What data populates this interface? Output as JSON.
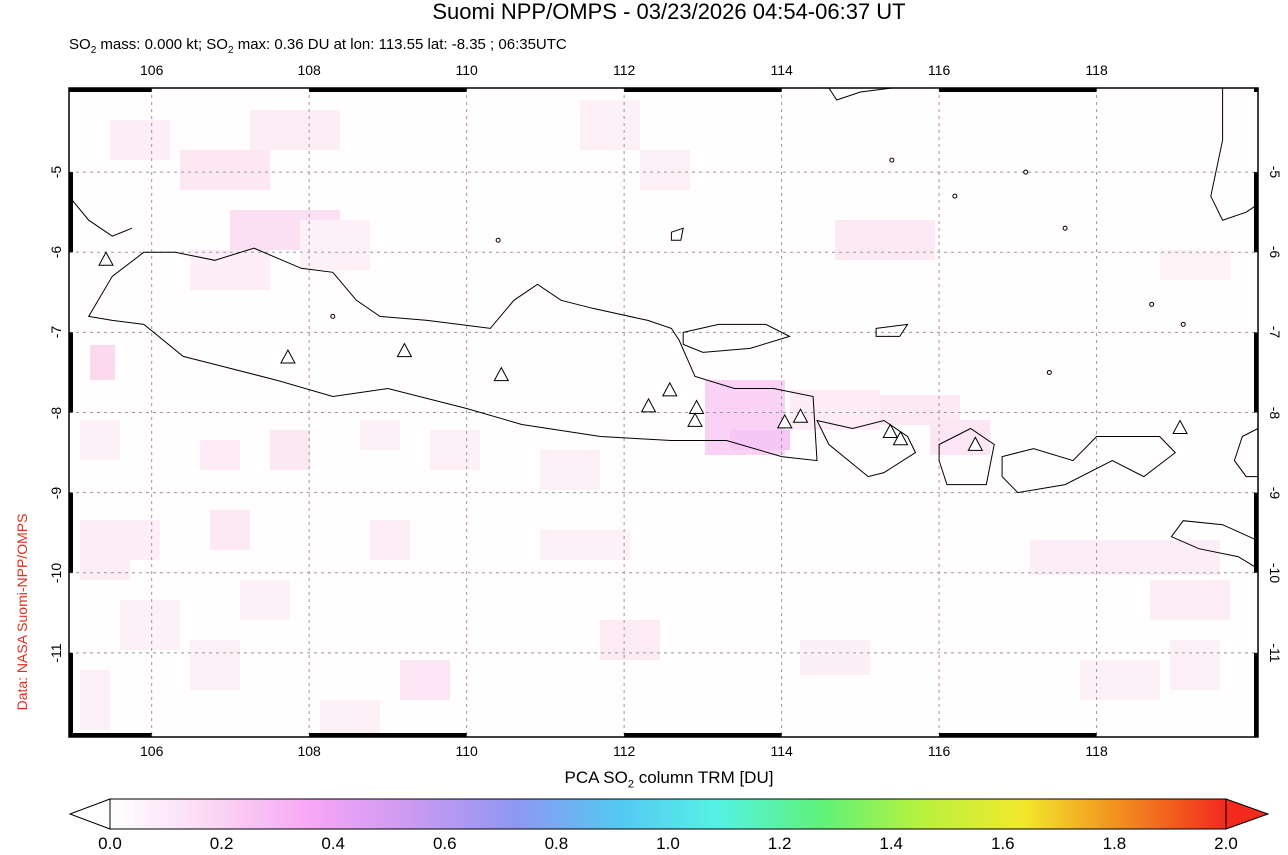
{
  "title": "Suomi NPP/OMPS - 03/23/2026 04:54-06:37 UT",
  "subtitle": {
    "pre": "SO",
    "sub": "2",
    "mid": " mass: 0.000 kt; SO",
    "sub2": "2",
    "post": " max: 0.36 DU at lon: 113.55 lat: -8.35 ; 06:35UTC"
  },
  "credit": "Data: NASA Suomi-NPP/OMPS",
  "map": {
    "lon_range": [
      104.95,
      120.05
    ],
    "lat_range": [
      -12.05,
      -3.95
    ],
    "lon_ticks": [
      "106",
      "108",
      "110",
      "112",
      "114",
      "116",
      "118"
    ],
    "lat_ticks": [
      "-5",
      "-6",
      "-7",
      "-8",
      "-9",
      "-10",
      "-11"
    ],
    "volcanoes": [
      [
        105.42,
        -6.1
      ],
      [
        107.73,
        -7.32
      ],
      [
        109.21,
        -7.24
      ],
      [
        110.44,
        -7.54
      ],
      [
        112.31,
        -7.93
      ],
      [
        112.58,
        -7.73
      ],
      [
        112.92,
        -7.95
      ],
      [
        112.9,
        -8.11
      ],
      [
        114.04,
        -8.13
      ],
      [
        114.24,
        -8.06
      ],
      [
        115.38,
        -8.25
      ],
      [
        115.51,
        -8.34
      ],
      [
        116.46,
        -8.41
      ],
      [
        119.06,
        -8.2
      ]
    ]
  },
  "colorbar": {
    "title_pre": "PCA SO",
    "title_sub": "2",
    "title_post": " column TRM [DU]",
    "labels": [
      "0.0",
      "0.2",
      "0.4",
      "0.6",
      "0.8",
      "1.0",
      "1.2",
      "1.4",
      "1.6",
      "1.8",
      "2.0"
    ],
    "colors": [
      "#ffffff",
      "#fbd7f4",
      "#f7a6f5",
      "#c99af2",
      "#8f97f2",
      "#54c8f2",
      "#54f2e5",
      "#5ef27a",
      "#b8f23e",
      "#f2e82c",
      "#f28a1e",
      "#f22a1e"
    ]
  },
  "colors": {
    "credit": "#e0301e",
    "coast": "#000000",
    "grid": "#999999"
  }
}
